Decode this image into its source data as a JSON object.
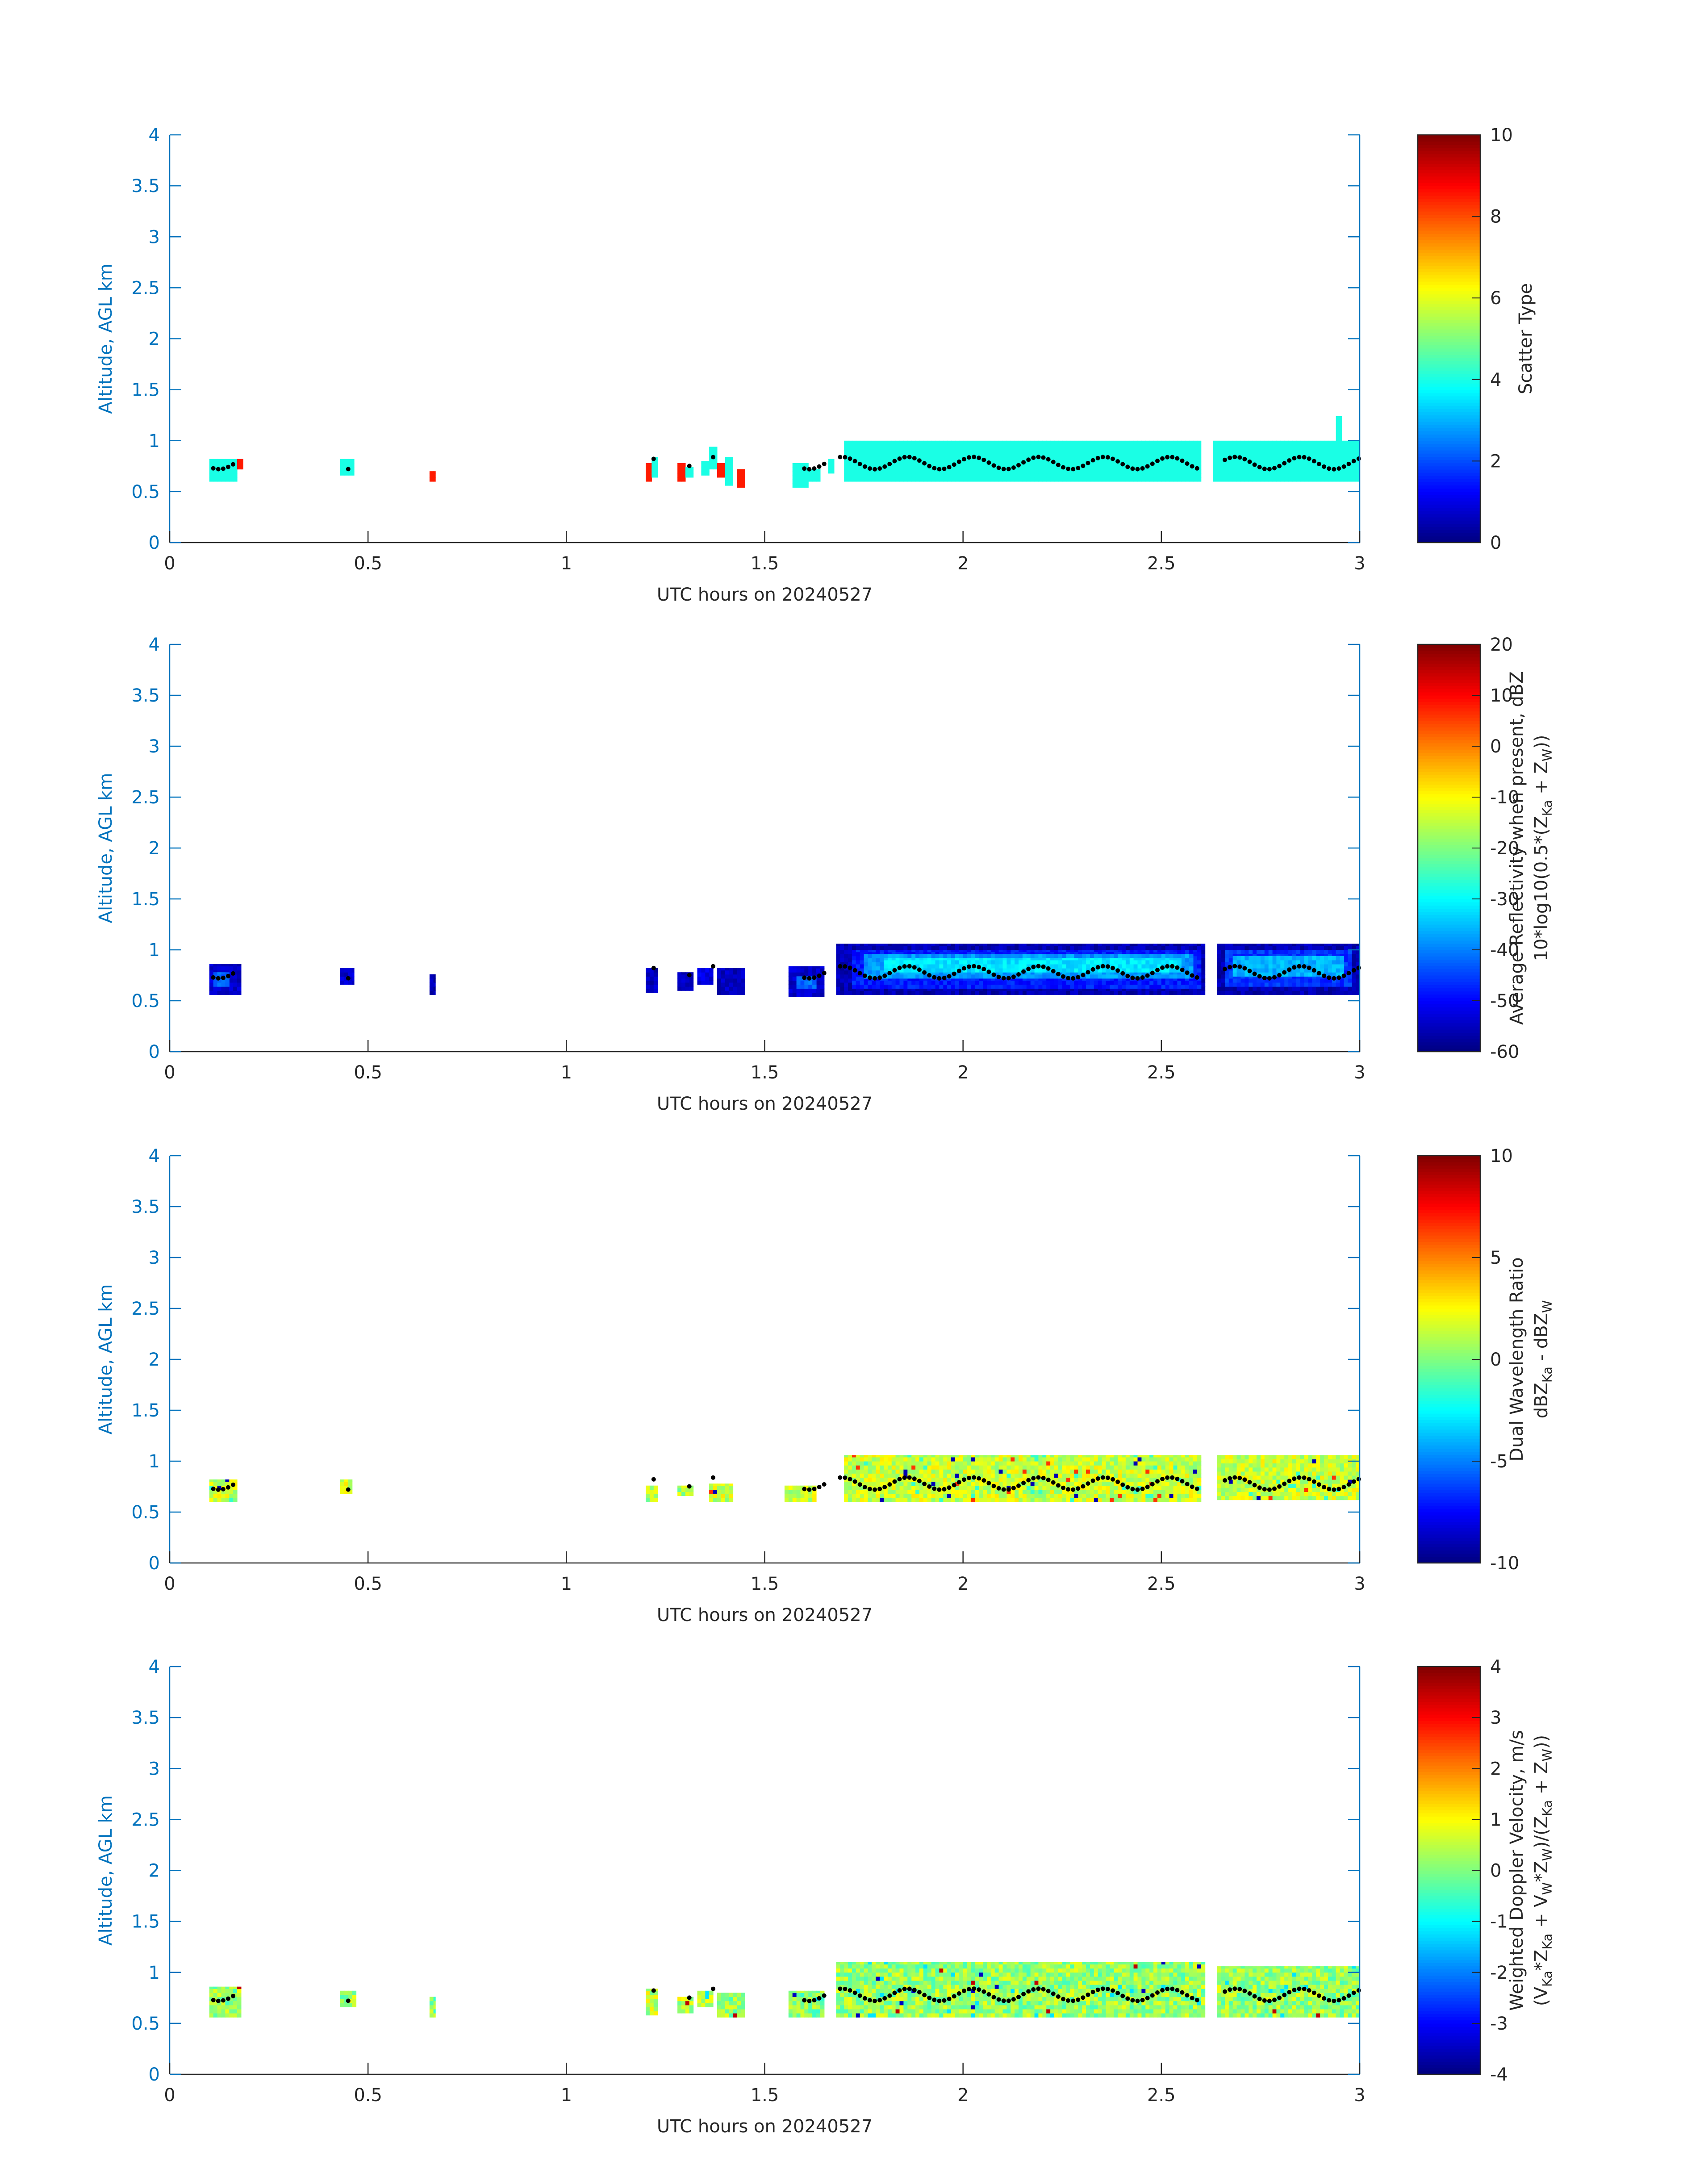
{
  "figure": {
    "colors": {
      "axis_blue": "#0072bd",
      "text_dark": "#262626",
      "grid_line": "#0072bd",
      "marker": "#000000"
    }
  },
  "chart_data": [
    {
      "type": "heatmap",
      "colormap": "jet",
      "xlabel": "UTC hours on 20240527",
      "ylabel": "Altitude, AGL km",
      "xlim": [
        0,
        3
      ],
      "ylim": [
        0,
        4
      ],
      "xticks": [
        "0",
        "0.5",
        "1",
        "1.5",
        "2",
        "2.5",
        "3"
      ],
      "yticks": [
        "0",
        "0.5",
        "1",
        "1.5",
        "2",
        "2.5",
        "3",
        "3.5",
        "4"
      ],
      "colorbar": {
        "label_lines": [
          "Scatter Type"
        ],
        "range": [
          0,
          10
        ],
        "ticks": [
          "0",
          "2",
          "4",
          "6",
          "8",
          "10"
        ]
      },
      "mode": "scatter",
      "cells": [
        {
          "t0": 0.1,
          "t1": 0.17,
          "a0": 0.6,
          "a1": 0.82,
          "v": 4.0
        },
        {
          "t0": 0.17,
          "t1": 0.185,
          "a0": 0.72,
          "a1": 0.82,
          "v": 8.5
        },
        {
          "t0": 0.43,
          "t1": 0.465,
          "a0": 0.66,
          "a1": 0.82,
          "v": 4.0
        },
        {
          "t0": 0.655,
          "t1": 0.67,
          "a0": 0.6,
          "a1": 0.7,
          "v": 8.5
        },
        {
          "t0": 1.2,
          "t1": 1.215,
          "a0": 0.6,
          "a1": 0.78,
          "v": 8.5
        },
        {
          "t0": 1.215,
          "t1": 1.23,
          "a0": 0.64,
          "a1": 0.84,
          "v": 4.0
        },
        {
          "t0": 1.28,
          "t1": 1.3,
          "a0": 0.6,
          "a1": 0.78,
          "v": 8.5
        },
        {
          "t0": 1.3,
          "t1": 1.32,
          "a0": 0.64,
          "a1": 0.74,
          "v": 4.0
        },
        {
          "t0": 1.34,
          "t1": 1.36,
          "a0": 0.66,
          "a1": 0.8,
          "v": 4.0
        },
        {
          "t0": 1.36,
          "t1": 1.38,
          "a0": 0.72,
          "a1": 0.94,
          "v": 4.0
        },
        {
          "t0": 1.38,
          "t1": 1.4,
          "a0": 0.64,
          "a1": 0.78,
          "v": 8.5
        },
        {
          "t0": 1.4,
          "t1": 1.42,
          "a0": 0.56,
          "a1": 0.84,
          "v": 4.0
        },
        {
          "t0": 1.43,
          "t1": 1.45,
          "a0": 0.54,
          "a1": 0.72,
          "v": 8.5
        },
        {
          "t0": 1.57,
          "t1": 1.61,
          "a0": 0.54,
          "a1": 0.78,
          "v": 4.0
        },
        {
          "t0": 1.61,
          "t1": 1.64,
          "a0": 0.6,
          "a1": 0.72,
          "v": 4.0
        },
        {
          "t0": 1.66,
          "t1": 1.675,
          "a0": 0.68,
          "a1": 0.82,
          "v": 4.0
        },
        {
          "t0": 1.7,
          "t1": 2.6,
          "a0": 0.6,
          "a1": 1.0,
          "v": 4.0
        },
        {
          "t0": 2.63,
          "t1": 3.0,
          "a0": 0.6,
          "a1": 1.0,
          "v": 4.0
        },
        {
          "t0": 2.94,
          "t1": 2.955,
          "a0": 1.0,
          "a1": 1.24,
          "v": 4.0
        }
      ]
    },
    {
      "type": "heatmap",
      "colormap": "jet",
      "xlabel": "UTC hours on 20240527",
      "ylabel": "Altitude, AGL km",
      "xlim": [
        0,
        3
      ],
      "ylim": [
        0,
        4
      ],
      "xticks": [
        "0",
        "0.5",
        "1",
        "1.5",
        "2",
        "2.5",
        "3"
      ],
      "yticks": [
        "0",
        "0.5",
        "1",
        "1.5",
        "2",
        "2.5",
        "3",
        "3.5",
        "4"
      ],
      "colorbar": {
        "label_lines": [
          "Average Reflectivity when present, dBZ",
          "10*log10(0.5*(Z_Ka + Z_W))"
        ],
        "range": [
          -60,
          20
        ],
        "ticks": [
          "-60",
          "-50",
          "-40",
          "-30",
          "-20",
          "-10",
          "0",
          "10",
          "20"
        ]
      },
      "mode": "reflectivity",
      "cells": [
        {
          "t0": 0.1,
          "t1": 0.18,
          "a0": 0.56,
          "a1": 0.86,
          "v": -54
        },
        {
          "t0": 0.11,
          "t1": 0.15,
          "a0": 0.64,
          "a1": 0.78,
          "v": -42
        },
        {
          "t0": 0.43,
          "t1": 0.465,
          "a0": 0.66,
          "a1": 0.82,
          "v": -54
        },
        {
          "t0": 0.655,
          "t1": 0.67,
          "a0": 0.56,
          "a1": 0.76,
          "v": -56
        },
        {
          "t0": 1.2,
          "t1": 1.23,
          "a0": 0.58,
          "a1": 0.82,
          "v": -55
        },
        {
          "t0": 1.28,
          "t1": 1.32,
          "a0": 0.6,
          "a1": 0.78,
          "v": -55
        },
        {
          "t0": 1.33,
          "t1": 1.37,
          "a0": 0.66,
          "a1": 0.82,
          "v": -52
        },
        {
          "t0": 1.38,
          "t1": 1.45,
          "a0": 0.56,
          "a1": 0.82,
          "v": -55
        },
        {
          "t0": 1.56,
          "t1": 1.65,
          "a0": 0.54,
          "a1": 0.84,
          "v": -54
        },
        {
          "t0": 1.58,
          "t1": 1.63,
          "a0": 0.62,
          "a1": 0.74,
          "v": -42
        },
        {
          "t0": 1.68,
          "t1": 2.61,
          "a0": 0.56,
          "a1": 1.06,
          "v": -56
        },
        {
          "t0": 1.72,
          "t1": 2.6,
          "a0": 0.62,
          "a1": 1.0,
          "v": -48
        },
        {
          "t0": 1.75,
          "t1": 2.58,
          "a0": 0.72,
          "a1": 0.96,
          "v": -38
        },
        {
          "t0": 1.8,
          "t1": 2.55,
          "a0": 0.78,
          "a1": 0.92,
          "v": -32
        },
        {
          "t0": 2.64,
          "t1": 3.0,
          "a0": 0.56,
          "a1": 1.06,
          "v": -56
        },
        {
          "t0": 2.66,
          "t1": 2.98,
          "a0": 0.64,
          "a1": 1.0,
          "v": -46
        },
        {
          "t0": 2.68,
          "t1": 2.96,
          "a0": 0.74,
          "a1": 0.94,
          "v": -36
        }
      ]
    },
    {
      "type": "heatmap",
      "colormap": "jet",
      "xlabel": "UTC hours on 20240527",
      "ylabel": "Altitude, AGL km",
      "xlim": [
        0,
        3
      ],
      "ylim": [
        0,
        4
      ],
      "xticks": [
        "0",
        "0.5",
        "1",
        "1.5",
        "2",
        "2.5",
        "3"
      ],
      "yticks": [
        "0",
        "0.5",
        "1",
        "1.5",
        "2",
        "2.5",
        "3",
        "3.5",
        "4"
      ],
      "colorbar": {
        "label_lines": [
          "Dual Wavelength Ratio",
          "dBZ_Ka - dBZ_W"
        ],
        "range": [
          -10,
          10
        ],
        "ticks": [
          "-10",
          "-5",
          "0",
          "5",
          "10"
        ]
      },
      "mode": "dwr",
      "cells": [
        {
          "t0": 0.1,
          "t1": 0.17,
          "a0": 0.6,
          "a1": 0.82,
          "v": 1.5
        },
        {
          "t0": 0.43,
          "t1": 0.46,
          "a0": 0.68,
          "a1": 0.82,
          "v": 1.5
        },
        {
          "t0": 1.2,
          "t1": 1.23,
          "a0": 0.6,
          "a1": 0.76,
          "v": 1.0
        },
        {
          "t0": 1.28,
          "t1": 1.32,
          "a0": 0.66,
          "a1": 0.76,
          "v": 1.0
        },
        {
          "t0": 1.36,
          "t1": 1.42,
          "a0": 0.6,
          "a1": 0.78,
          "v": 1.5
        },
        {
          "t0": 1.55,
          "t1": 1.63,
          "a0": 0.6,
          "a1": 0.76,
          "v": 1.5
        },
        {
          "t0": 1.7,
          "t1": 2.6,
          "a0": 0.6,
          "a1": 1.06,
          "v": 1.5
        },
        {
          "t0": 2.64,
          "t1": 3.0,
          "a0": 0.62,
          "a1": 1.06,
          "v": 1.5
        }
      ]
    },
    {
      "type": "heatmap",
      "colormap": "jet",
      "xlabel": "UTC hours on 20240527",
      "ylabel": "Altitude, AGL km",
      "xlim": [
        0,
        3
      ],
      "ylim": [
        0,
        4
      ],
      "xticks": [
        "0",
        "0.5",
        "1",
        "1.5",
        "2",
        "2.5",
        "3"
      ],
      "yticks": [
        "0",
        "0.5",
        "1",
        "1.5",
        "2",
        "2.5",
        "3",
        "3.5",
        "4"
      ],
      "colorbar": {
        "label_lines": [
          "Weighted Doppler Velocity, m/s",
          "(V_Ka*Z_Ka + V_W*Z_W)/(Z_Ka + Z_W))"
        ],
        "range": [
          -4,
          4
        ],
        "ticks": [
          "-4",
          "-3",
          "-2",
          "-1",
          "0",
          "1",
          "2",
          "3",
          "4"
        ]
      },
      "mode": "doppler",
      "cells": [
        {
          "t0": 0.1,
          "t1": 0.18,
          "a0": 0.56,
          "a1": 0.86,
          "v": 0.2
        },
        {
          "t0": 0.43,
          "t1": 0.47,
          "a0": 0.66,
          "a1": 0.82,
          "v": 0.2
        },
        {
          "t0": 0.655,
          "t1": 0.67,
          "a0": 0.56,
          "a1": 0.76,
          "v": 0.0
        },
        {
          "t0": 1.2,
          "t1": 1.23,
          "a0": 0.58,
          "a1": 0.84,
          "v": 0.5
        },
        {
          "t0": 1.28,
          "t1": 1.32,
          "a0": 0.6,
          "a1": 0.76,
          "v": 0.5
        },
        {
          "t0": 1.33,
          "t1": 1.37,
          "a0": 0.66,
          "a1": 0.82,
          "v": 0.5
        },
        {
          "t0": 1.38,
          "t1": 1.45,
          "a0": 0.56,
          "a1": 0.8,
          "v": 0.2
        },
        {
          "t0": 1.56,
          "t1": 1.65,
          "a0": 0.56,
          "a1": 0.82,
          "v": 0.0
        },
        {
          "t0": 1.68,
          "t1": 2.61,
          "a0": 0.56,
          "a1": 1.1,
          "v": 0.2
        },
        {
          "t0": 2.64,
          "t1": 3.0,
          "a0": 0.56,
          "a1": 1.06,
          "v": 0.2
        }
      ]
    }
  ]
}
